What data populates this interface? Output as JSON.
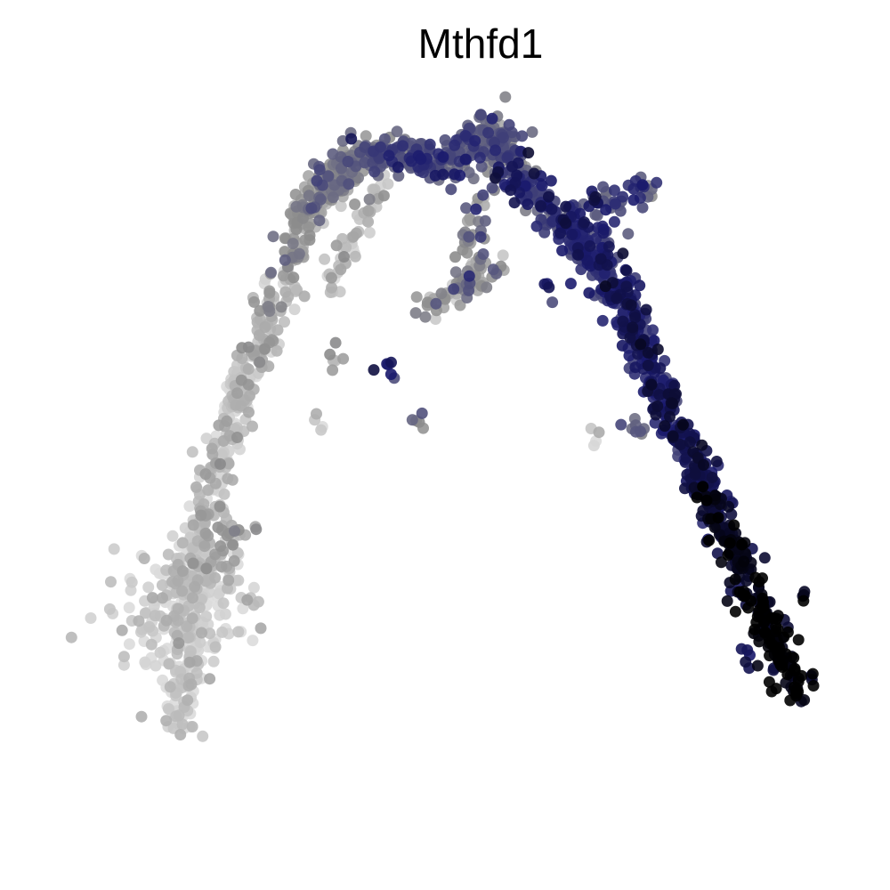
{
  "chart_data": {
    "type": "scatter",
    "title": "Mthfd1",
    "xlabel": "",
    "ylabel": "",
    "axes_visible": false,
    "grid": false,
    "legend": "none",
    "xlim": [
      0,
      1
    ],
    "ylim": [
      0,
      1
    ],
    "color_scale": {
      "low": "#dcdcdc",
      "mid_low": "#8c8c8c",
      "mid_high": "#1a1a6e",
      "high": "#000000"
    },
    "trajectory": [
      {
        "x": 0.2,
        "y": 0.18,
        "expr": 0.05
      },
      {
        "x": 0.21,
        "y": 0.26,
        "expr": 0.05
      },
      {
        "x": 0.22,
        "y": 0.34,
        "expr": 0.06
      },
      {
        "x": 0.22,
        "y": 0.38,
        "expr": 0.08
      },
      {
        "x": 0.24,
        "y": 0.46,
        "expr": 0.08
      },
      {
        "x": 0.26,
        "y": 0.53,
        "expr": 0.1
      },
      {
        "x": 0.28,
        "y": 0.59,
        "expr": 0.12
      },
      {
        "x": 0.31,
        "y": 0.66,
        "expr": 0.2
      },
      {
        "x": 0.34,
        "y": 0.75,
        "expr": 0.25
      },
      {
        "x": 0.37,
        "y": 0.8,
        "expr": 0.32
      },
      {
        "x": 0.41,
        "y": 0.83,
        "expr": 0.4
      },
      {
        "x": 0.45,
        "y": 0.83,
        "expr": 0.5
      },
      {
        "x": 0.5,
        "y": 0.81,
        "expr": 0.55
      },
      {
        "x": 0.55,
        "y": 0.86,
        "expr": 0.42
      },
      {
        "x": 0.58,
        "y": 0.81,
        "expr": 0.55
      },
      {
        "x": 0.62,
        "y": 0.76,
        "expr": 0.55
      },
      {
        "x": 0.66,
        "y": 0.72,
        "expr": 0.6
      },
      {
        "x": 0.69,
        "y": 0.68,
        "expr": 0.65
      },
      {
        "x": 0.71,
        "y": 0.64,
        "expr": 0.65
      },
      {
        "x": 0.73,
        "y": 0.59,
        "expr": 0.68
      },
      {
        "x": 0.75,
        "y": 0.54,
        "expr": 0.7
      },
      {
        "x": 0.78,
        "y": 0.48,
        "expr": 0.72
      },
      {
        "x": 0.8,
        "y": 0.44,
        "expr": 0.78
      },
      {
        "x": 0.82,
        "y": 0.39,
        "expr": 0.85
      },
      {
        "x": 0.85,
        "y": 0.33,
        "expr": 0.92
      },
      {
        "x": 0.87,
        "y": 0.28,
        "expr": 0.97
      },
      {
        "x": 0.9,
        "y": 0.22,
        "expr": 1.0
      }
    ],
    "branches": [
      {
        "from": {
          "x": 0.43,
          "y": 0.8
        },
        "to": {
          "x": 0.37,
          "y": 0.67
        },
        "expr": 0.1
      },
      {
        "from": {
          "x": 0.54,
          "y": 0.77
        },
        "to": {
          "x": 0.52,
          "y": 0.66
        },
        "expr": 0.35
      },
      {
        "from": {
          "x": 0.56,
          "y": 0.7
        },
        "to": {
          "x": 0.47,
          "y": 0.65
        },
        "expr": 0.25
      },
      {
        "from": {
          "x": 0.64,
          "y": 0.76
        },
        "to": {
          "x": 0.74,
          "y": 0.79
        },
        "expr": 0.55
      },
      {
        "from": {
          "x": 0.4,
          "y": 0.8
        },
        "to": {
          "x": 0.33,
          "y": 0.76
        },
        "expr": 0.3
      }
    ],
    "clusters": [
      {
        "x": 0.2,
        "y": 0.3,
        "spread": 0.035,
        "count": 140,
        "expr": 0.05
      },
      {
        "x": 0.23,
        "y": 0.35,
        "spread": 0.03,
        "count": 80,
        "expr": 0.08
      },
      {
        "x": 0.26,
        "y": 0.39,
        "spread": 0.015,
        "count": 20,
        "expr": 0.25
      },
      {
        "x": 0.55,
        "y": 0.84,
        "spread": 0.02,
        "count": 50,
        "expr": 0.45
      },
      {
        "x": 0.66,
        "y": 0.72,
        "spread": 0.02,
        "count": 40,
        "expr": 0.62
      },
      {
        "x": 0.37,
        "y": 0.6,
        "spread": 0.006,
        "count": 6,
        "expr": 0.25
      },
      {
        "x": 0.44,
        "y": 0.59,
        "spread": 0.006,
        "count": 6,
        "expr": 0.7
      },
      {
        "x": 0.47,
        "y": 0.53,
        "spread": 0.005,
        "count": 5,
        "expr": 0.35
      },
      {
        "x": 0.36,
        "y": 0.52,
        "spread": 0.005,
        "count": 4,
        "expr": 0.1
      },
      {
        "x": 0.67,
        "y": 0.51,
        "spread": 0.005,
        "count": 4,
        "expr": 0.05
      },
      {
        "x": 0.72,
        "y": 0.52,
        "spread": 0.008,
        "count": 8,
        "expr": 0.4
      },
      {
        "x": 0.84,
        "y": 0.26,
        "spread": 0.006,
        "count": 6,
        "expr": 0.75
      },
      {
        "x": 0.9,
        "y": 0.33,
        "spread": 0.004,
        "count": 4,
        "expr": 1.0
      },
      {
        "x": 0.62,
        "y": 0.67,
        "spread": 0.006,
        "count": 4,
        "expr": 0.65
      },
      {
        "x": 0.57,
        "y": 0.8,
        "spread": 0.012,
        "count": 15,
        "expr": 0.7
      }
    ]
  }
}
